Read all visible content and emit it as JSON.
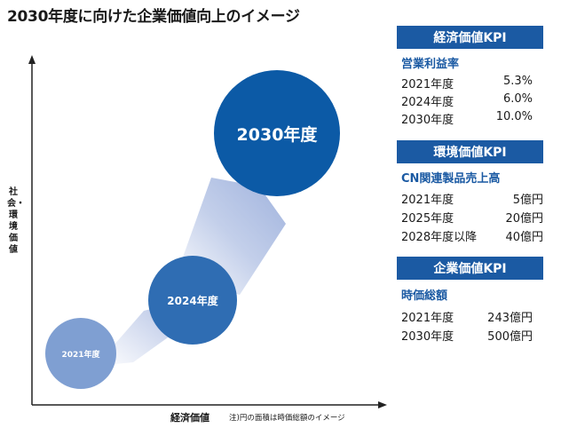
{
  "title": "2030年度に向けた企業価値向上のイメージ",
  "diagram": {
    "y_axis_label": "社会・環境価値",
    "x_axis_label": "経済価値",
    "note": "注)円の面積は時価総額のイメージ",
    "circles": [
      {
        "label": "2021年度",
        "color": "#7f9fd2"
      },
      {
        "label": "2024年度",
        "color": "#2f6db3"
      },
      {
        "label": "2030年度",
        "color": "#0c5aa6"
      }
    ]
  },
  "kpis": [
    {
      "header": "経済価値KPI",
      "metric": "営業利益率",
      "rows": [
        {
          "year": "2021年度",
          "value": "5.3%"
        },
        {
          "year": "2024年度",
          "value": "6.0%"
        },
        {
          "year": "2030年度",
          "value": "10.0%"
        }
      ]
    },
    {
      "header": "環境価値KPI",
      "metric": "CN関連製品売上高",
      "rows": [
        {
          "year": "2021年度",
          "value": "5億円"
        },
        {
          "year": "2025年度",
          "value": "20億円"
        },
        {
          "year": "2028年度以降",
          "value": "40億円"
        }
      ]
    },
    {
      "header": "企業価値KPI",
      "metric": "時価総額",
      "rows": [
        {
          "year": "2021年度",
          "value": "243億円"
        },
        {
          "year": "2030年度",
          "value": "500億円"
        }
      ]
    }
  ],
  "colors": {
    "accent": "#1b5aa3"
  }
}
